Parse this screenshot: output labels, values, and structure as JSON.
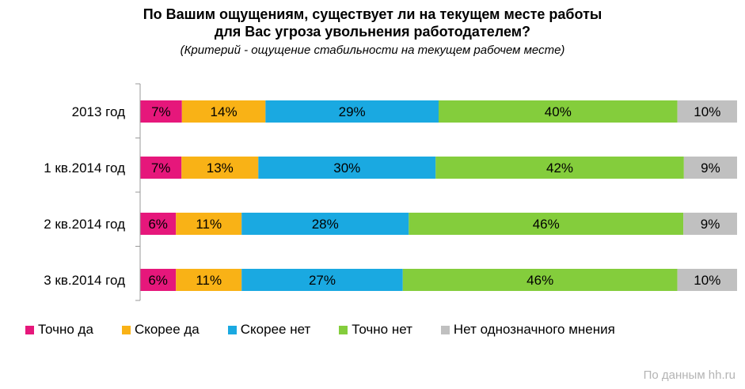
{
  "chart_data": {
    "type": "bar",
    "orientation": "horizontal",
    "stacked": true,
    "title_line1": "По Вашим ощущениям, существует ли на текущем месте работы",
    "title_line2": "для Вас угроза увольнения работодателем?",
    "subtitle": "(Критерий - ощущение стабильности на текущем рабочем месте)",
    "categories": [
      "2013 год",
      "1 кв.2014 год",
      "2 кв.2014 год",
      "3 кв.2014 год"
    ],
    "series": [
      {
        "name": "Точно да",
        "color": "#e6177b",
        "values": [
          7,
          7,
          6,
          6
        ]
      },
      {
        "name": "Скорее да",
        "color": "#f9b216",
        "values": [
          14,
          13,
          11,
          11
        ]
      },
      {
        "name": "Скорее нет",
        "color": "#1aa9e1",
        "values": [
          29,
          30,
          28,
          27
        ]
      },
      {
        "name": "Точно нет",
        "color": "#84cd3c",
        "values": [
          40,
          42,
          46,
          46
        ]
      },
      {
        "name": "Нет однозначного мнения",
        "color": "#c0c0c0",
        "values": [
          10,
          9,
          9,
          10
        ]
      }
    ],
    "value_suffix": "%",
    "legend_position": "bottom",
    "grid": false
  },
  "source": "По данным hh.ru"
}
